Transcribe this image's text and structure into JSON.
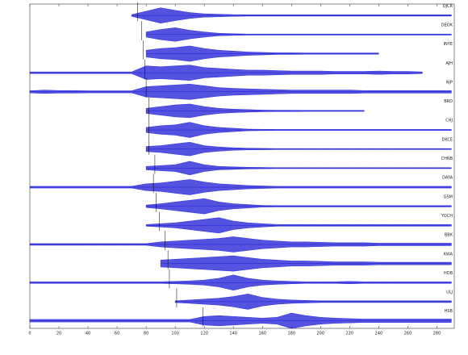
{
  "chart_data": {
    "type": "seismogram",
    "x": [
      0,
      10,
      20,
      30,
      40,
      50,
      60,
      70,
      80,
      90,
      100,
      110,
      120,
      130,
      140,
      150,
      160,
      170,
      180,
      190,
      200,
      210,
      220,
      230,
      240,
      250,
      260,
      270,
      280,
      290
    ],
    "xlim": [
      0,
      292
    ],
    "xticks": [
      0,
      20,
      40,
      60,
      80,
      100,
      120,
      140,
      160,
      180,
      200,
      220,
      240,
      260,
      280
    ],
    "color": "#1a1ad6",
    "series": [
      {
        "name": "DJCR",
        "onset": 74,
        "values": [
          null,
          null,
          null,
          null,
          null,
          null,
          null,
          0.1,
          0.5,
          0.9,
          0.6,
          0.35,
          0.2,
          0.15,
          0.1,
          0.08,
          0.08,
          0.08,
          0.08,
          0.08,
          0.08,
          0.08,
          0.08,
          0.08,
          0.08,
          0.08,
          0.08,
          0.08,
          0.08,
          0.08
        ]
      },
      {
        "name": "DEOK",
        "onset": 77,
        "values": [
          null,
          null,
          null,
          null,
          null,
          null,
          null,
          null,
          0.3,
          0.6,
          0.8,
          0.5,
          0.3,
          0.15,
          0.1,
          0.06,
          0.06,
          0.06,
          0.06,
          0.06,
          0.06,
          0.06,
          0.06,
          0.06,
          0.06,
          0.06,
          0.06,
          0.06,
          0.06,
          0.06
        ]
      },
      {
        "name": "INYE",
        "onset": 78,
        "values": [
          null,
          null,
          null,
          null,
          null,
          null,
          null,
          null,
          0.4,
          0.6,
          0.7,
          0.9,
          0.6,
          0.4,
          0.3,
          0.2,
          0.15,
          0.1,
          0.1,
          0.08,
          0.08,
          0.08,
          0.08,
          0.08,
          0.08,
          null,
          null,
          null,
          null,
          null
        ]
      },
      {
        "name": "AJH",
        "onset": 79,
        "values": [
          0.1,
          0.1,
          0.1,
          0.1,
          0.1,
          0.1,
          0.1,
          0.1,
          0.8,
          0.7,
          0.8,
          0.9,
          0.6,
          0.5,
          0.4,
          0.3,
          0.3,
          0.25,
          0.2,
          0.2,
          0.2,
          0.15,
          0.15,
          0.15,
          0.2,
          0.15,
          0.15,
          0.1,
          null,
          null
        ]
      },
      {
        "name": "NJP",
        "onset": 80,
        "values": [
          0.12,
          0.2,
          0.15,
          0.15,
          0.12,
          0.12,
          0.12,
          0.12,
          0.6,
          0.7,
          0.8,
          0.9,
          0.7,
          0.5,
          0.4,
          0.35,
          0.3,
          0.25,
          0.2,
          0.2,
          0.2,
          0.2,
          0.2,
          0.15,
          0.15,
          0.15,
          0.15,
          0.15,
          0.15,
          0.15
        ]
      },
      {
        "name": "BRD",
        "onset": 82,
        "values": [
          null,
          null,
          null,
          null,
          null,
          null,
          null,
          null,
          0.3,
          0.5,
          0.7,
          0.8,
          0.5,
          0.3,
          0.2,
          0.15,
          0.1,
          0.08,
          0.08,
          0.06,
          0.06,
          0.06,
          0.06,
          0.06,
          null,
          null,
          null,
          null,
          null,
          null
        ]
      },
      {
        "name": "CHJ",
        "onset": 82,
        "values": [
          null,
          null,
          null,
          null,
          null,
          null,
          null,
          null,
          0.3,
          0.5,
          0.6,
          0.9,
          0.5,
          0.3,
          0.2,
          0.1,
          0.08,
          0.06,
          0.06,
          0.06,
          0.06,
          0.06,
          0.06,
          0.06,
          0.06,
          0.06,
          0.06,
          0.06,
          0.06,
          0.06
        ]
      },
      {
        "name": "DKCE",
        "onset": 82,
        "values": [
          null,
          null,
          null,
          null,
          null,
          null,
          null,
          null,
          0.3,
          0.4,
          0.6,
          0.8,
          0.4,
          0.25,
          0.15,
          0.1,
          0.08,
          0.06,
          0.06,
          0.06,
          0.06,
          0.06,
          0.06,
          0.06,
          0.06,
          0.06,
          0.06,
          0.06,
          0.06,
          0.06
        ]
      },
      {
        "name": "CHNB",
        "onset": 86,
        "values": [
          null,
          null,
          null,
          null,
          null,
          null,
          null,
          null,
          0.2,
          0.3,
          0.4,
          0.8,
          0.4,
          0.2,
          0.15,
          0.1,
          0.08,
          0.06,
          0.06,
          0.06,
          0.06,
          0.06,
          0.06,
          0.06,
          0.06,
          0.06,
          0.06,
          0.06,
          0.06,
          0.06
        ]
      },
      {
        "name": "DAYA",
        "onset": 85,
        "values": [
          0.1,
          0.1,
          0.1,
          0.1,
          0.1,
          0.1,
          0.1,
          0.1,
          0.4,
          0.5,
          0.7,
          0.9,
          0.6,
          0.4,
          0.3,
          0.2,
          0.15,
          0.1,
          0.1,
          0.1,
          0.1,
          0.1,
          0.1,
          0.1,
          0.1,
          0.1,
          0.1,
          0.1,
          0.1,
          0.1
        ]
      },
      {
        "name": "GSM",
        "onset": 87,
        "values": [
          null,
          null,
          null,
          null,
          null,
          null,
          null,
          null,
          0.15,
          0.3,
          0.5,
          0.7,
          0.9,
          0.5,
          0.3,
          0.2,
          0.1,
          0.08,
          0.08,
          0.08,
          0.08,
          0.08,
          0.08,
          0.08,
          0.08,
          0.08,
          0.08,
          0.08,
          0.08,
          0.08
        ]
      },
      {
        "name": "YOCH",
        "onset": 89,
        "values": [
          null,
          null,
          null,
          null,
          null,
          null,
          null,
          null,
          0.1,
          0.2,
          0.3,
          0.5,
          0.7,
          0.9,
          0.5,
          0.3,
          0.2,
          0.1,
          0.1,
          0.1,
          0.1,
          0.1,
          0.1,
          0.1,
          0.1,
          0.1,
          0.1,
          0.1,
          0.1,
          0.1
        ]
      },
      {
        "name": "BBK",
        "onset": 93,
        "values": [
          0.1,
          0.1,
          0.1,
          0.1,
          0.1,
          0.1,
          0.1,
          0.1,
          0.1,
          0.3,
          0.4,
          0.5,
          0.6,
          0.7,
          0.9,
          0.7,
          0.5,
          0.4,
          0.3,
          0.3,
          0.25,
          0.2,
          0.2,
          0.2,
          0.15,
          0.15,
          0.15,
          0.15,
          0.15,
          0.15
        ]
      },
      {
        "name": "KWA",
        "onset": 95,
        "values": [
          null,
          null,
          null,
          null,
          null,
          null,
          null,
          null,
          null,
          0.4,
          0.5,
          0.6,
          0.7,
          0.8,
          0.9,
          0.7,
          0.5,
          0.4,
          0.3,
          0.3,
          0.25,
          0.2,
          0.2,
          0.2,
          0.15,
          0.15,
          0.15,
          0.15,
          0.15,
          0.15
        ]
      },
      {
        "name": "HDB",
        "onset": 96,
        "values": [
          0.1,
          0.1,
          0.1,
          0.1,
          0.1,
          0.1,
          0.1,
          0.1,
          0.1,
          0.1,
          0.15,
          0.2,
          0.3,
          0.5,
          0.9,
          0.5,
          0.3,
          0.2,
          0.15,
          0.1,
          0.1,
          0.1,
          0.15,
          0.1,
          0.1,
          0.1,
          0.1,
          0.1,
          0.1,
          0.1
        ]
      },
      {
        "name": "ULJ",
        "onset": 101,
        "values": [
          null,
          null,
          null,
          null,
          null,
          null,
          null,
          null,
          null,
          null,
          0.1,
          0.2,
          0.3,
          0.4,
          0.6,
          0.9,
          0.5,
          0.3,
          0.2,
          0.15,
          0.1,
          0.1,
          0.1,
          0.1,
          0.1,
          0.1,
          0.1,
          0.1,
          0.1,
          0.1
        ]
      },
      {
        "name": "HSB",
        "onset": 119,
        "values": [
          0.15,
          0.15,
          0.15,
          0.15,
          0.15,
          0.15,
          0.15,
          0.15,
          0.15,
          0.15,
          0.15,
          0.15,
          0.5,
          0.6,
          0.5,
          0.4,
          0.3,
          0.4,
          0.9,
          0.6,
          0.4,
          0.3,
          0.25,
          0.2,
          0.2,
          0.2,
          0.2,
          0.2,
          0.2,
          0.2
        ]
      }
    ]
  }
}
